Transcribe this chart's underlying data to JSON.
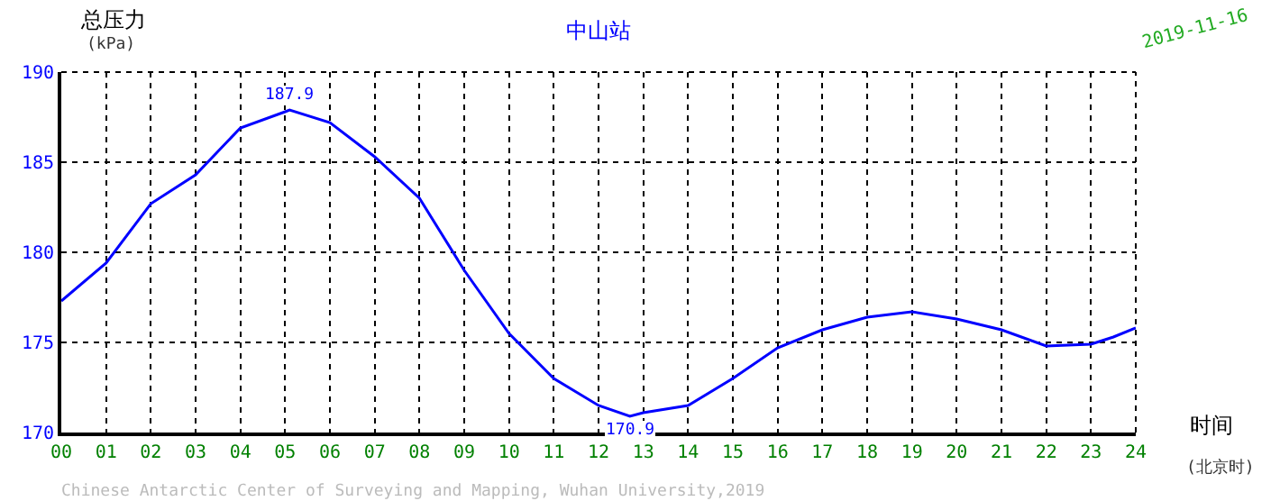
{
  "chart_data": {
    "type": "line",
    "title": "中山站",
    "xlabel": "时间",
    "ylabel": "总压力",
    "x": [
      0,
      1,
      2,
      3,
      4,
      5,
      5.1,
      6,
      7,
      8,
      9,
      10,
      11,
      12,
      12.7,
      13,
      14,
      15,
      16,
      17,
      18,
      19,
      20,
      21,
      22,
      23,
      23.5,
      24
    ],
    "series": [
      {
        "color": "#0000ff",
        "values": [
          177.3,
          179.4,
          182.7,
          184.3,
          186.9,
          187.8,
          187.9,
          187.2,
          185.3,
          183.0,
          179.0,
          175.5,
          173.0,
          171.5,
          170.9,
          171.1,
          171.5,
          173.0,
          174.7,
          175.7,
          176.4,
          176.7,
          176.3,
          175.7,
          174.8,
          174.9,
          175.3,
          175.8
        ]
      }
    ],
    "xlim": [
      0,
      24
    ],
    "ylim": [
      170,
      190
    ],
    "xticks": [
      {
        "value": 0,
        "label": "00"
      },
      {
        "value": 1,
        "label": "01"
      },
      {
        "value": 2,
        "label": "02"
      },
      {
        "value": 3,
        "label": "03"
      },
      {
        "value": 4,
        "label": "04"
      },
      {
        "value": 5,
        "label": "05"
      },
      {
        "value": 6,
        "label": "06"
      },
      {
        "value": 7,
        "label": "07"
      },
      {
        "value": 8,
        "label": "08"
      },
      {
        "value": 9,
        "label": "09"
      },
      10,
      11,
      12,
      13,
      14,
      15,
      16,
      17,
      18,
      19,
      20,
      21,
      22,
      23,
      24
    ],
    "yticks": [
      170,
      175,
      180,
      185,
      190
    ],
    "grid": true,
    "legend": false,
    "marker": "none",
    "line_style": "solid",
    "annotations": [
      {
        "text": "187.9",
        "x": 5.1,
        "y": 187.9
      },
      {
        "text": "170.9",
        "x": 12.7,
        "y": 170.9
      },
      "(kPa)",
      "(北京时)",
      "2019-11-16",
      "Chinese Antarctic Center of Surveying and Mapping, Wuhan University,2019"
    ]
  }
}
